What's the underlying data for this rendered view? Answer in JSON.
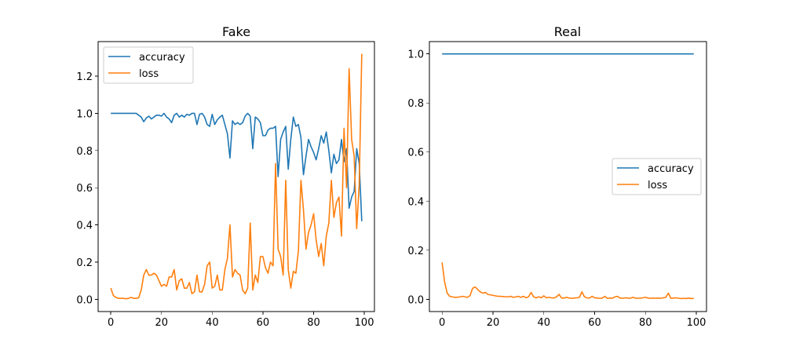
{
  "chart_data": [
    {
      "type": "line",
      "title": "Fake",
      "xlabel": "",
      "ylabel": "",
      "xlim": [
        -5,
        104
      ],
      "ylim": [
        -0.066,
        1.386
      ],
      "xticks": [
        0,
        20,
        40,
        60,
        80,
        100
      ],
      "xtick_labels": [
        "0",
        "20",
        "40",
        "60",
        "80",
        "100"
      ],
      "yticks": [
        0.0,
        0.2,
        0.4,
        0.6,
        0.8,
        1.0,
        1.2
      ],
      "ytick_labels": [
        "0.0",
        "0.2",
        "0.4",
        "0.6",
        "0.8",
        "1.0",
        "1.2"
      ],
      "grid": false,
      "legend_position": "upper-left",
      "x": [
        0,
        1,
        2,
        3,
        4,
        5,
        6,
        7,
        8,
        9,
        10,
        11,
        12,
        13,
        14,
        15,
        16,
        17,
        18,
        19,
        20,
        21,
        22,
        23,
        24,
        25,
        26,
        27,
        28,
        29,
        30,
        31,
        32,
        33,
        34,
        35,
        36,
        37,
        38,
        39,
        40,
        41,
        42,
        43,
        44,
        45,
        46,
        47,
        48,
        49,
        50,
        51,
        52,
        53,
        54,
        55,
        56,
        57,
        58,
        59,
        60,
        61,
        62,
        63,
        64,
        65,
        66,
        67,
        68,
        69,
        70,
        71,
        72,
        73,
        74,
        75,
        76,
        77,
        78,
        79,
        80,
        81,
        82,
        83,
        84,
        85,
        86,
        87,
        88,
        89,
        90,
        91,
        92,
        93,
        94,
        95,
        96,
        97,
        98,
        99
      ],
      "series": [
        {
          "name": "accuracy",
          "color": "#1f77b4",
          "values": [
            1.0,
            1.0,
            1.0,
            1.0,
            1.0,
            1.0,
            1.0,
            1.0,
            1.0,
            1.0,
            1.0,
            0.99,
            0.98,
            0.955,
            0.975,
            0.985,
            0.97,
            0.98,
            0.99,
            0.99,
            0.985,
            1.0,
            0.98,
            0.97,
            0.95,
            0.99,
            1.0,
            0.98,
            0.99,
            0.98,
            0.995,
            0.99,
            1.0,
            1.0,
            0.94,
            0.995,
            1.0,
            0.98,
            0.94,
            0.93,
            0.995,
            0.94,
            0.965,
            0.98,
            0.99,
            0.94,
            0.89,
            0.76,
            0.96,
            0.94,
            0.95,
            0.94,
            0.95,
            0.985,
            1.0,
            0.985,
            0.81,
            0.98,
            0.97,
            0.95,
            0.88,
            0.88,
            0.91,
            0.92,
            0.92,
            0.93,
            0.66,
            0.86,
            0.9,
            0.93,
            0.7,
            0.86,
            0.98,
            0.93,
            0.94,
            0.87,
            0.67,
            0.77,
            0.86,
            0.82,
            0.79,
            0.75,
            0.81,
            0.88,
            0.84,
            0.9,
            0.8,
            0.68,
            0.78,
            0.73,
            0.75,
            0.86,
            0.74,
            0.81,
            0.49,
            0.55,
            0.58,
            0.81,
            0.73,
            0.42
          ]
        },
        {
          "name": "loss",
          "color": "#ff7f0e",
          "values": [
            0.06,
            0.02,
            0.01,
            0.005,
            0.005,
            0.005,
            0.003,
            0.005,
            0.01,
            0.005,
            0.005,
            0.008,
            0.05,
            0.13,
            0.16,
            0.13,
            0.13,
            0.14,
            0.13,
            0.1,
            0.07,
            0.08,
            0.07,
            0.12,
            0.12,
            0.16,
            0.05,
            0.1,
            0.11,
            0.06,
            0.06,
            0.09,
            0.03,
            0.04,
            0.13,
            0.04,
            0.04,
            0.08,
            0.18,
            0.2,
            0.06,
            0.07,
            0.13,
            0.05,
            0.05,
            0.16,
            0.22,
            0.4,
            0.12,
            0.16,
            0.14,
            0.13,
            0.05,
            0.03,
            0.06,
            0.41,
            0.05,
            0.13,
            0.09,
            0.23,
            0.23,
            0.17,
            0.14,
            0.2,
            0.18,
            0.73,
            0.27,
            0.23,
            0.13,
            0.64,
            0.16,
            0.06,
            0.15,
            0.14,
            0.26,
            0.64,
            0.48,
            0.27,
            0.36,
            0.4,
            0.46,
            0.32,
            0.23,
            0.3,
            0.18,
            0.34,
            0.41,
            0.64,
            0.44,
            0.52,
            0.55,
            0.34,
            0.92,
            0.6,
            1.24,
            0.86,
            0.77,
            0.38,
            0.62,
            1.32
          ]
        }
      ]
    },
    {
      "type": "line",
      "title": "Real",
      "xlabel": "",
      "ylabel": "",
      "xlim": [
        -5,
        104
      ],
      "ylim": [
        -0.05,
        1.05
      ],
      "xticks": [
        0,
        20,
        40,
        60,
        80,
        100
      ],
      "xtick_labels": [
        "0",
        "20",
        "40",
        "60",
        "80",
        "100"
      ],
      "yticks": [
        0.0,
        0.2,
        0.4,
        0.6,
        0.8,
        1.0
      ],
      "ytick_labels": [
        "0.0",
        "0.2",
        "0.4",
        "0.6",
        "0.8",
        "1.0"
      ],
      "grid": false,
      "legend_position": "center-right",
      "x": [
        0,
        1,
        2,
        3,
        4,
        5,
        6,
        7,
        8,
        9,
        10,
        11,
        12,
        13,
        14,
        15,
        16,
        17,
        18,
        19,
        20,
        21,
        22,
        23,
        24,
        25,
        26,
        27,
        28,
        29,
        30,
        31,
        32,
        33,
        34,
        35,
        36,
        37,
        38,
        39,
        40,
        41,
        42,
        43,
        44,
        45,
        46,
        47,
        48,
        49,
        50,
        51,
        52,
        53,
        54,
        55,
        56,
        57,
        58,
        59,
        60,
        61,
        62,
        63,
        64,
        65,
        66,
        67,
        68,
        69,
        70,
        71,
        72,
        73,
        74,
        75,
        76,
        77,
        78,
        79,
        80,
        81,
        82,
        83,
        84,
        85,
        86,
        87,
        88,
        89,
        90,
        91,
        92,
        93,
        94,
        95,
        96,
        97,
        98,
        99
      ],
      "series": [
        {
          "name": "accuracy",
          "color": "#1f77b4",
          "values": [
            1.0,
            1.0,
            1.0,
            1.0,
            1.0,
            1.0,
            1.0,
            1.0,
            1.0,
            1.0,
            1.0,
            1.0,
            1.0,
            1.0,
            1.0,
            1.0,
            1.0,
            1.0,
            1.0,
            1.0,
            1.0,
            1.0,
            1.0,
            1.0,
            1.0,
            1.0,
            1.0,
            1.0,
            1.0,
            1.0,
            1.0,
            1.0,
            1.0,
            1.0,
            1.0,
            1.0,
            1.0,
            1.0,
            1.0,
            1.0,
            1.0,
            1.0,
            1.0,
            1.0,
            1.0,
            1.0,
            1.0,
            1.0,
            1.0,
            1.0,
            1.0,
            1.0,
            1.0,
            1.0,
            1.0,
            1.0,
            1.0,
            1.0,
            1.0,
            1.0,
            1.0,
            1.0,
            1.0,
            1.0,
            1.0,
            1.0,
            1.0,
            1.0,
            1.0,
            1.0,
            1.0,
            1.0,
            1.0,
            1.0,
            1.0,
            1.0,
            1.0,
            1.0,
            1.0,
            1.0,
            1.0,
            1.0,
            1.0,
            1.0,
            1.0,
            1.0,
            1.0,
            1.0,
            1.0,
            1.0,
            1.0,
            1.0,
            1.0,
            1.0,
            1.0,
            1.0,
            1.0,
            1.0,
            1.0,
            1.0
          ]
        },
        {
          "name": "loss",
          "color": "#ff7f0e",
          "values": [
            0.15,
            0.07,
            0.025,
            0.012,
            0.01,
            0.008,
            0.008,
            0.01,
            0.012,
            0.01,
            0.008,
            0.015,
            0.045,
            0.05,
            0.04,
            0.03,
            0.025,
            0.028,
            0.02,
            0.018,
            0.016,
            0.014,
            0.012,
            0.012,
            0.011,
            0.01,
            0.01,
            0.012,
            0.008,
            0.01,
            0.012,
            0.008,
            0.012,
            0.006,
            0.01,
            0.028,
            0.01,
            0.006,
            0.01,
            0.006,
            0.014,
            0.006,
            0.008,
            0.006,
            0.005,
            0.01,
            0.02,
            0.005,
            0.005,
            0.008,
            0.005,
            0.004,
            0.005,
            0.006,
            0.008,
            0.03,
            0.01,
            0.006,
            0.005,
            0.012,
            0.006,
            0.005,
            0.004,
            0.005,
            0.012,
            0.004,
            0.005,
            0.004,
            0.01,
            0.012,
            0.005,
            0.004,
            0.006,
            0.005,
            0.004,
            0.008,
            0.005,
            0.004,
            0.005,
            0.006,
            0.008,
            0.005,
            0.004,
            0.005,
            0.004,
            0.005,
            0.004,
            0.006,
            0.008,
            0.025,
            0.004,
            0.005,
            0.006,
            0.004,
            0.003,
            0.004,
            0.003,
            0.005,
            0.003,
            0.004
          ]
        }
      ]
    }
  ]
}
